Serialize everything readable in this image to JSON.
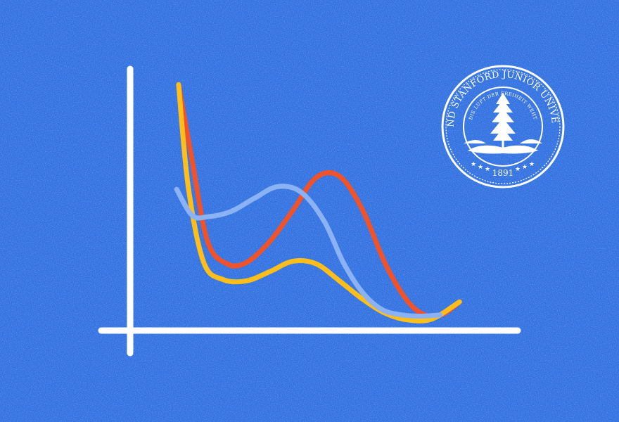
{
  "theme": {
    "background": "#2f6fe0",
    "axis_color": "#ffffff"
  },
  "seal": {
    "outer_text": "LELAND STANFORD JUNIOR UNIVERSITY",
    "motto": "DIE LUFT DER FREIHEIT WEHT",
    "year": "1891",
    "icon": "tree-icon"
  },
  "chart_data": {
    "type": "line",
    "title": "",
    "xlabel": "",
    "ylabel": "",
    "xlim": [
      0,
      10
    ],
    "ylim": [
      0,
      10
    ],
    "grid": false,
    "legend": "none",
    "series": [
      {
        "color": "#f0532a",
        "x": [
          1.25,
          1.6,
          2.0,
          2.5,
          3.0,
          3.6,
          4.2,
          4.8,
          5.4,
          6.0,
          6.6,
          7.2,
          7.7,
          8.1,
          8.5
        ],
        "y": [
          9.4,
          6.5,
          3.4,
          2.55,
          2.6,
          3.4,
          4.6,
          5.85,
          5.9,
          4.6,
          2.5,
          1.05,
          0.55,
          0.65,
          1.1
        ]
      },
      {
        "color": "#ffbe1a",
        "x": [
          1.25,
          1.5,
          1.9,
          2.4,
          3.0,
          3.6,
          4.2,
          4.8,
          5.4,
          6.0,
          6.6,
          7.2,
          7.8,
          8.5
        ],
        "y": [
          9.4,
          5.5,
          2.6,
          1.95,
          1.9,
          2.25,
          2.65,
          2.55,
          1.9,
          1.2,
          0.65,
          0.4,
          0.45,
          1.1
        ]
      },
      {
        "color": "#8bb2f5",
        "x": [
          1.2,
          1.6,
          2.0,
          2.6,
          3.2,
          3.8,
          4.4,
          5.0,
          5.5,
          6.0,
          6.5,
          7.0,
          7.5,
          8.0
        ],
        "y": [
          5.4,
          4.4,
          4.35,
          4.55,
          5.05,
          5.5,
          5.3,
          4.2,
          2.6,
          1.45,
          0.8,
          0.6,
          0.55,
          0.6
        ]
      }
    ]
  }
}
